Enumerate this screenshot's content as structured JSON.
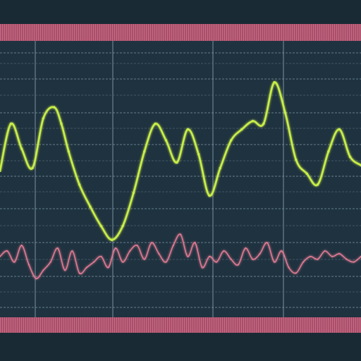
{
  "colors": {
    "background": "#1a2a35",
    "panel": "#1f323f",
    "grid": "#7d98a6",
    "grid_faint": "#4b6472",
    "band": "#d4627f",
    "band_dark": "#7e3950",
    "primary_trace": "#c9ee4a",
    "secondary_trace": "#e07a92"
  },
  "chart_data": {
    "type": "line",
    "title": "",
    "xlabel": "",
    "ylabel": "",
    "grid": true,
    "legend": "none",
    "xlim": [
      0,
      100
    ],
    "ylim": [
      0,
      100
    ],
    "series": [
      {
        "x": [
          0,
          3,
          6,
          9,
          12,
          15,
          17,
          19,
          22,
          25,
          28,
          31,
          34,
          37,
          40,
          43,
          46,
          49,
          52,
          55,
          58,
          61,
          64,
          67,
          70,
          73,
          76,
          79,
          82,
          85,
          88,
          91,
          94,
          97,
          100
        ],
        "values": [
          53,
          70,
          61,
          54,
          72,
          76,
          70,
          60,
          48,
          40,
          33,
          28,
          33,
          45,
          60,
          70,
          64,
          56,
          68,
          59,
          44,
          54,
          64,
          68,
          71,
          70,
          85,
          74,
          57,
          52,
          48,
          60,
          68,
          58,
          55
        ]
      },
      {
        "x": [
          0,
          2,
          4,
          6,
          8,
          10,
          12,
          14,
          16,
          18,
          20,
          22,
          24,
          26,
          28,
          30,
          32,
          34,
          36,
          38,
          40,
          42,
          44,
          46,
          48,
          50,
          52,
          54,
          56,
          58,
          60,
          62,
          64,
          66,
          68,
          70,
          72,
          74,
          76,
          78,
          80,
          82,
          84,
          86,
          88,
          90,
          92,
          94,
          96,
          98,
          100
        ],
        "values": [
          22,
          24,
          20,
          26,
          19,
          14,
          17,
          20,
          25,
          17,
          24,
          16,
          18,
          20,
          22,
          18,
          25,
          20,
          24,
          26,
          21,
          27,
          23,
          20,
          26,
          30,
          22,
          27,
          18,
          22,
          20,
          24,
          21,
          19,
          25,
          21,
          23,
          27,
          20,
          24,
          18,
          16,
          20,
          22,
          21,
          24,
          22,
          23,
          21,
          20,
          22
        ]
      }
    ]
  }
}
